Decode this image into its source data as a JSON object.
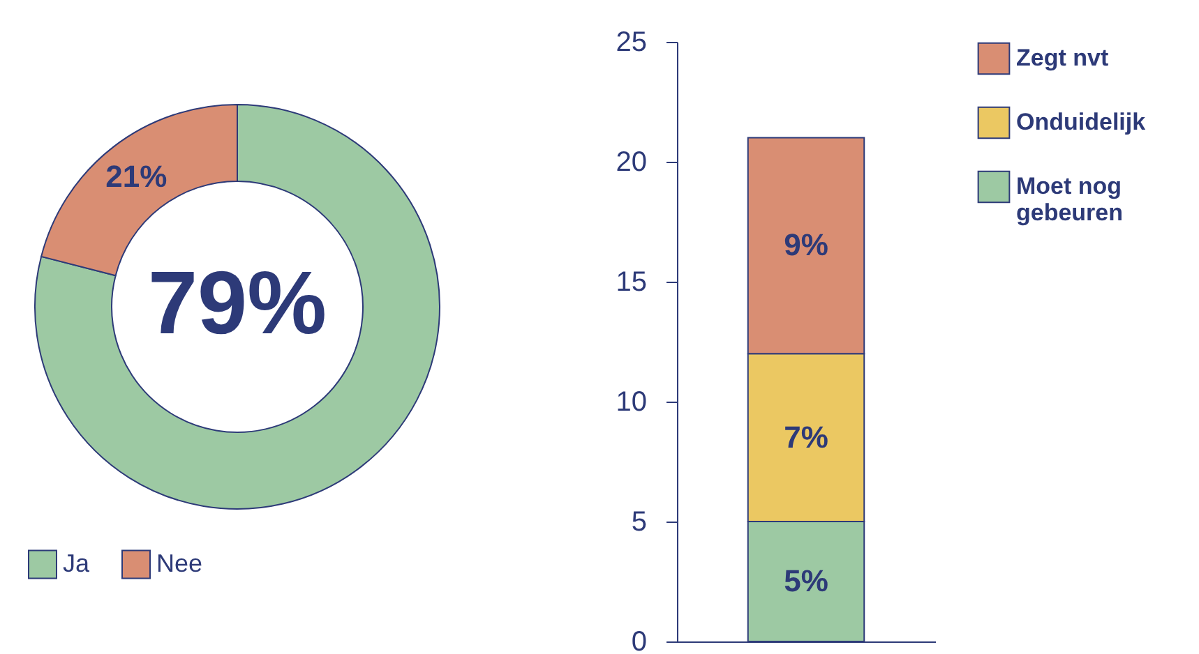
{
  "chart_data": [
    {
      "type": "donut",
      "categories": [
        "Ja",
        "Nee"
      ],
      "values": [
        79,
        21
      ],
      "colors": [
        "#9dc9a3",
        "#d98e73"
      ],
      "value_labels": [
        "79%",
        "21%"
      ],
      "legend": "bottom"
    },
    {
      "type": "bar",
      "stacked": true,
      "categories": [
        null
      ],
      "ylim": [
        0,
        25
      ],
      "yticks": [
        0,
        5,
        10,
        15,
        20,
        25
      ],
      "tick_labels": "y",
      "legend": "right",
      "grid": false,
      "series": [
        {
          "name": "Moet nog gebeuren",
          "color": "#9dc9a3",
          "values": [
            5
          ],
          "value_labels": [
            "5%"
          ]
        },
        {
          "name": "Onduidelijk",
          "color": "#ebc862",
          "values": [
            7
          ],
          "value_labels": [
            "7%"
          ]
        },
        {
          "name": "Zegt nvt",
          "color": "#d98e73",
          "values": [
            9
          ],
          "value_labels": [
            "9%"
          ]
        }
      ]
    }
  ]
}
